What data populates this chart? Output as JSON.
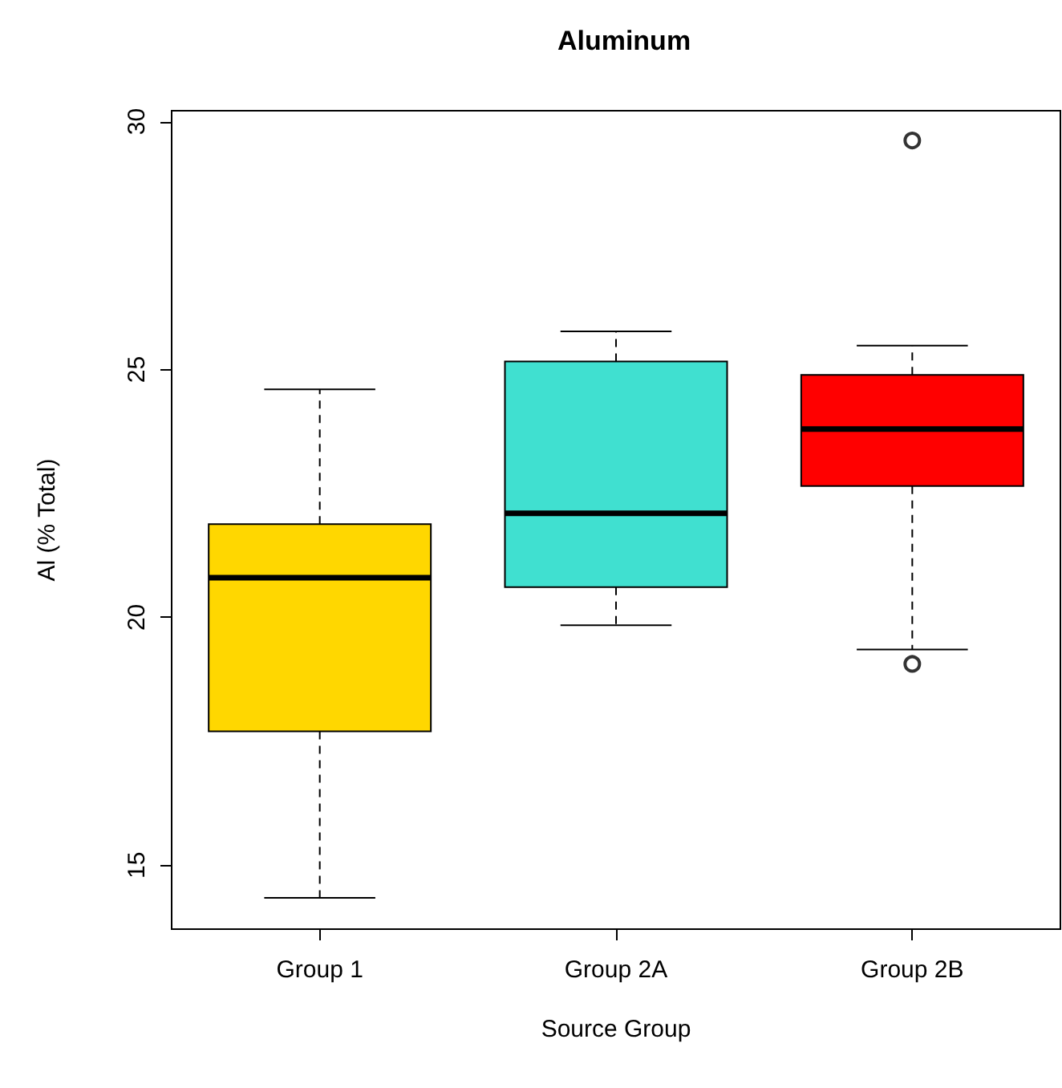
{
  "chart_data": {
    "type": "box",
    "title": "Aluminum",
    "xlabel": "Source Group",
    "ylabel": "Al (% Total)",
    "categories": [
      "Group 1",
      "Group 2A",
      "Group 2B"
    ],
    "colors": [
      "#ffd700",
      "#40e0d0",
      "#ff0000"
    ],
    "boxes": [
      {
        "low": 14.34,
        "q1": 17.7,
        "median": 20.8,
        "q3": 21.88,
        "high": 24.6
      },
      {
        "low": 19.84,
        "q1": 20.61,
        "median": 22.1,
        "q3": 25.16,
        "high": 25.77
      },
      {
        "low": 19.35,
        "q1": 22.65,
        "median": 23.8,
        "q3": 24.89,
        "high": 25.48,
        "outliers": [
          29.62,
          19.06
        ]
      }
    ],
    "ylim": [
      13.71,
      30.22
    ],
    "yticks": [
      15,
      20,
      25,
      30
    ],
    "grid": false
  }
}
